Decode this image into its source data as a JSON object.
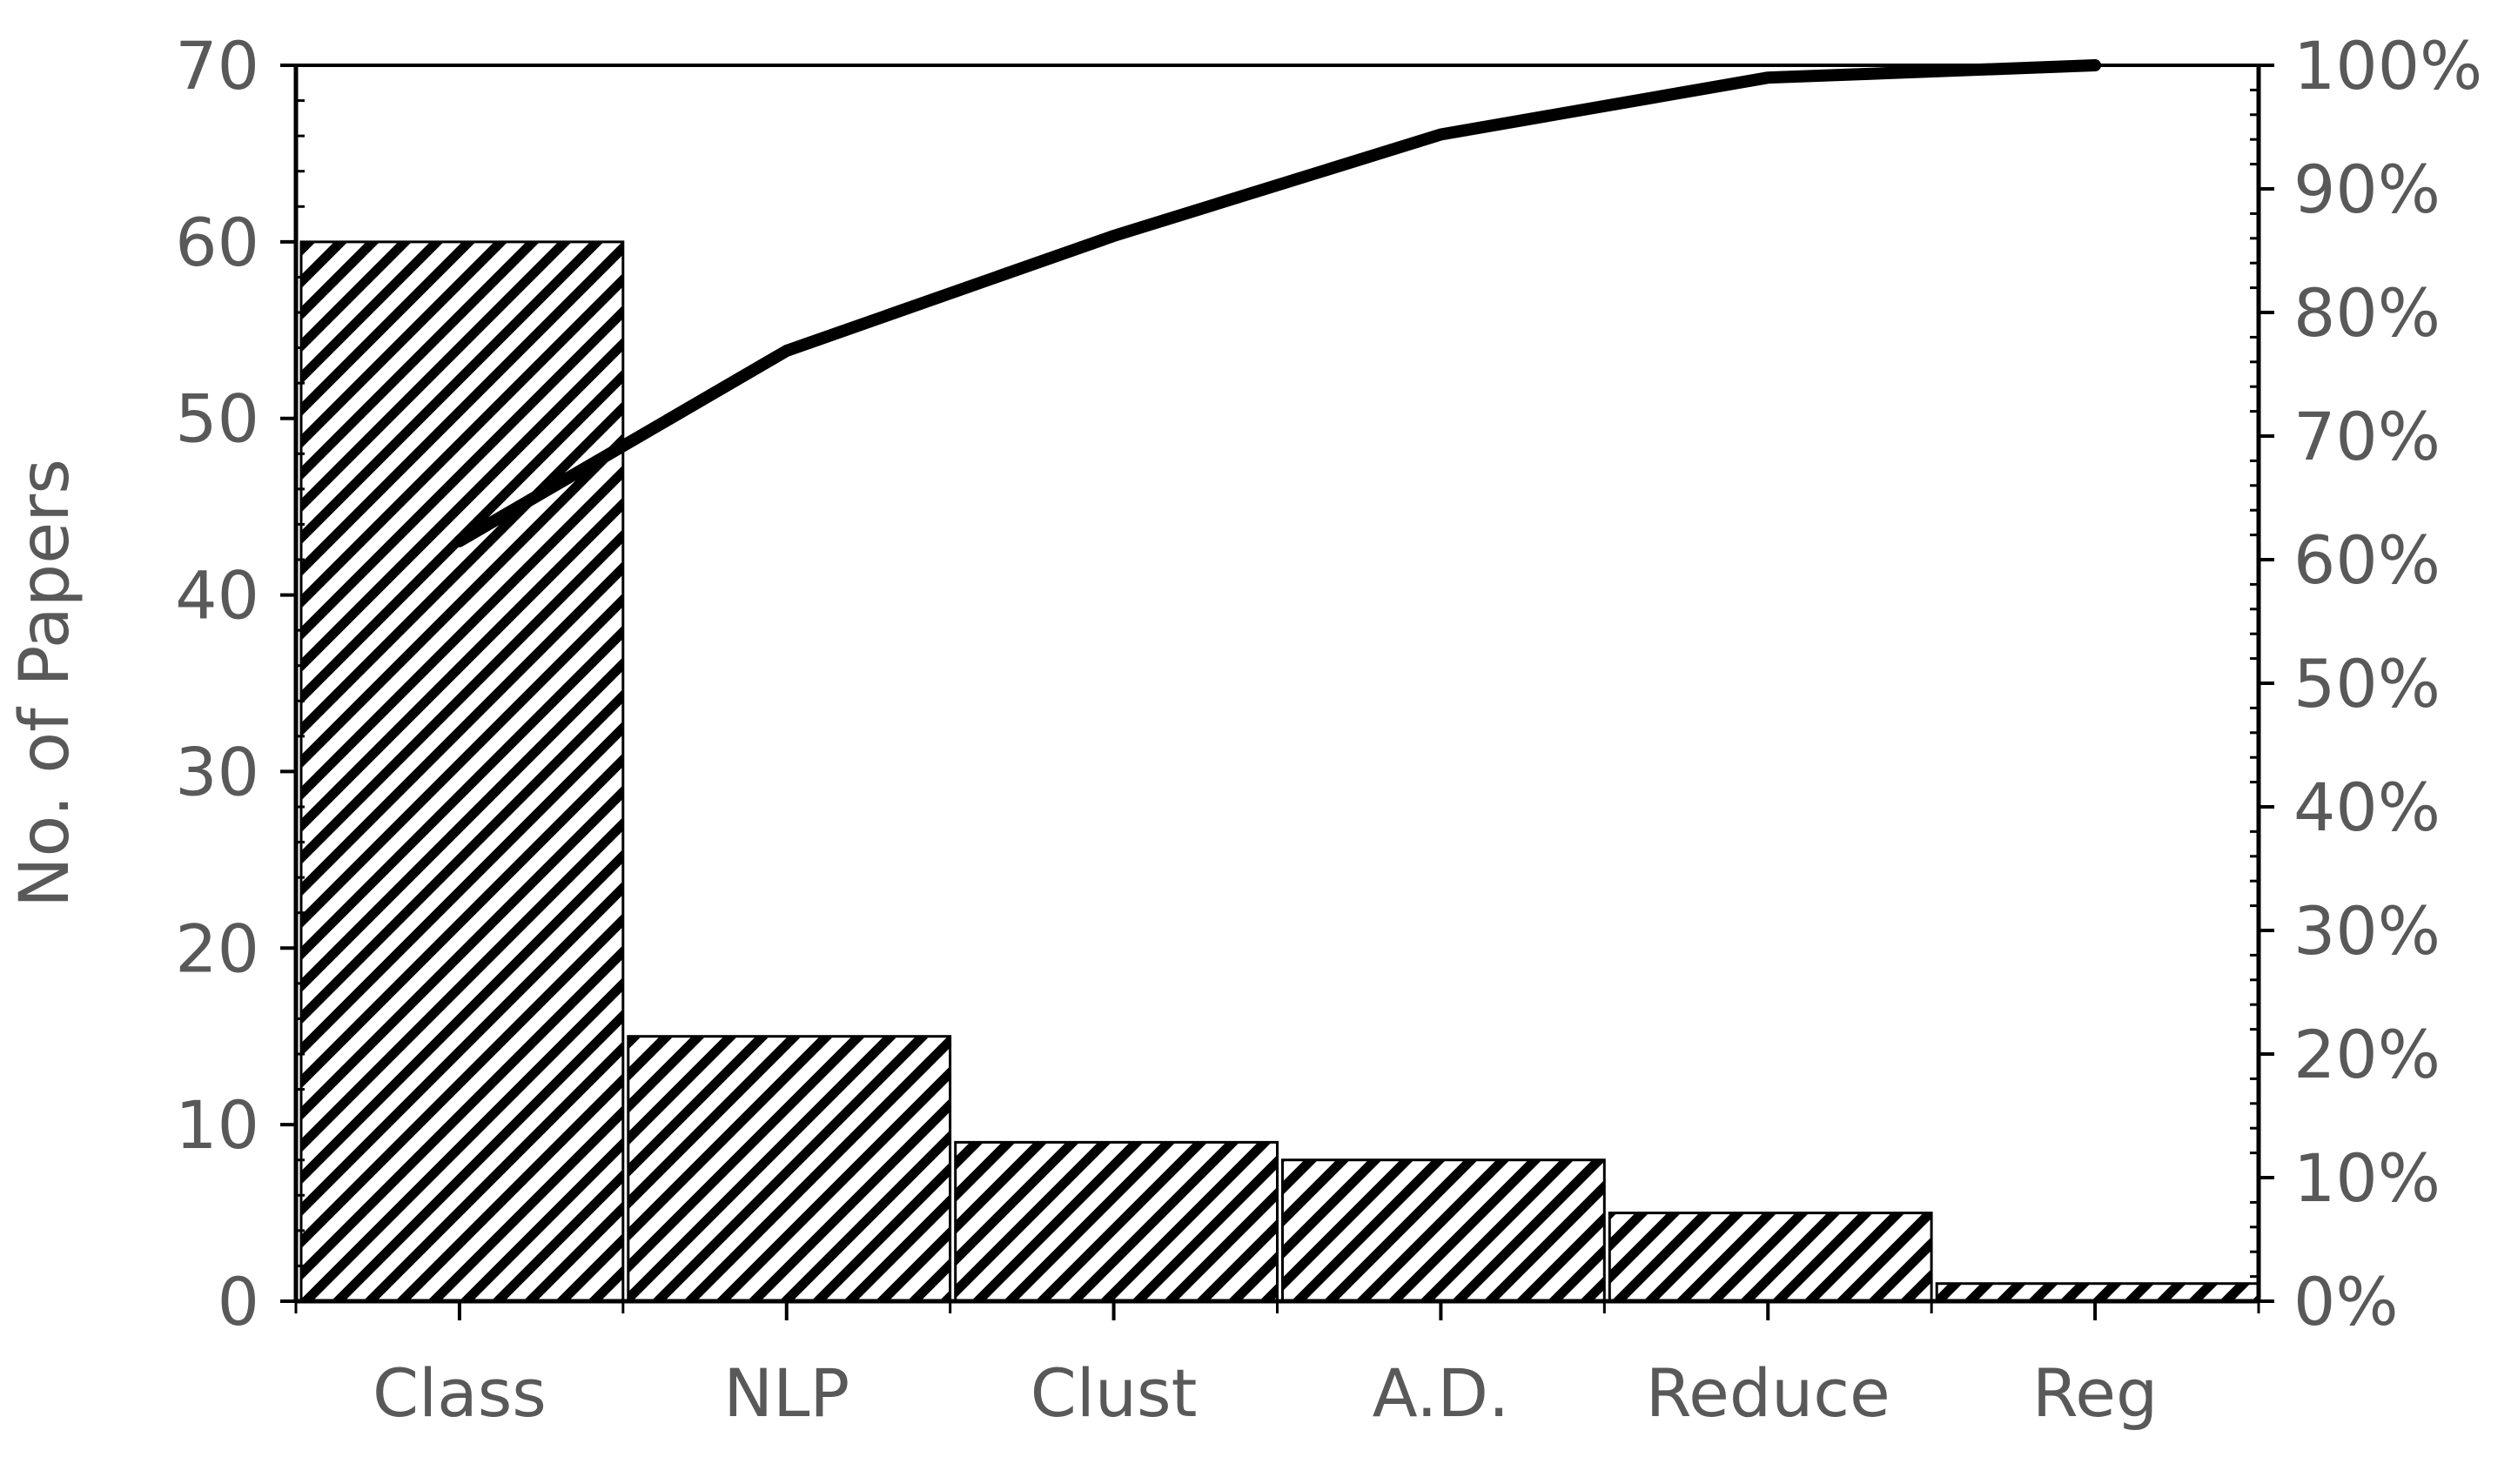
{
  "chart_data": {
    "type": "bar",
    "categories": [
      "Class",
      "NLP",
      "Clust",
      "A.D.",
      "Reduce",
      "Reg"
    ],
    "series": [
      {
        "type": "bar",
        "values": [
          60,
          15,
          9,
          8,
          5,
          1
        ]
      },
      {
        "type": "line",
        "axis": "y2",
        "values": [
          61.5,
          76.9,
          86.2,
          94.4,
          99.0,
          100
        ]
      }
    ],
    "title": "",
    "xlabel": "",
    "ylabel": "No. of Papers",
    "ylim": [
      0,
      70
    ],
    "yticks": [
      "0",
      "10",
      "20",
      "30",
      "40",
      "50",
      "60",
      "70"
    ],
    "y2lim": [
      0,
      100
    ],
    "y2ticks": [
      "0%",
      "10%",
      "20%",
      "30%",
      "40%",
      "50%",
      "60%",
      "70%",
      "80%",
      "90%",
      "100%"
    ],
    "bar_fill": "diagonal hatch",
    "colors": {
      "bar_edge": "#000000",
      "hatch": "#000000",
      "line": "#000000",
      "axis": "#000000",
      "text": "#595959",
      "background": "#ffffff"
    },
    "grid": false,
    "legend": "none"
  }
}
